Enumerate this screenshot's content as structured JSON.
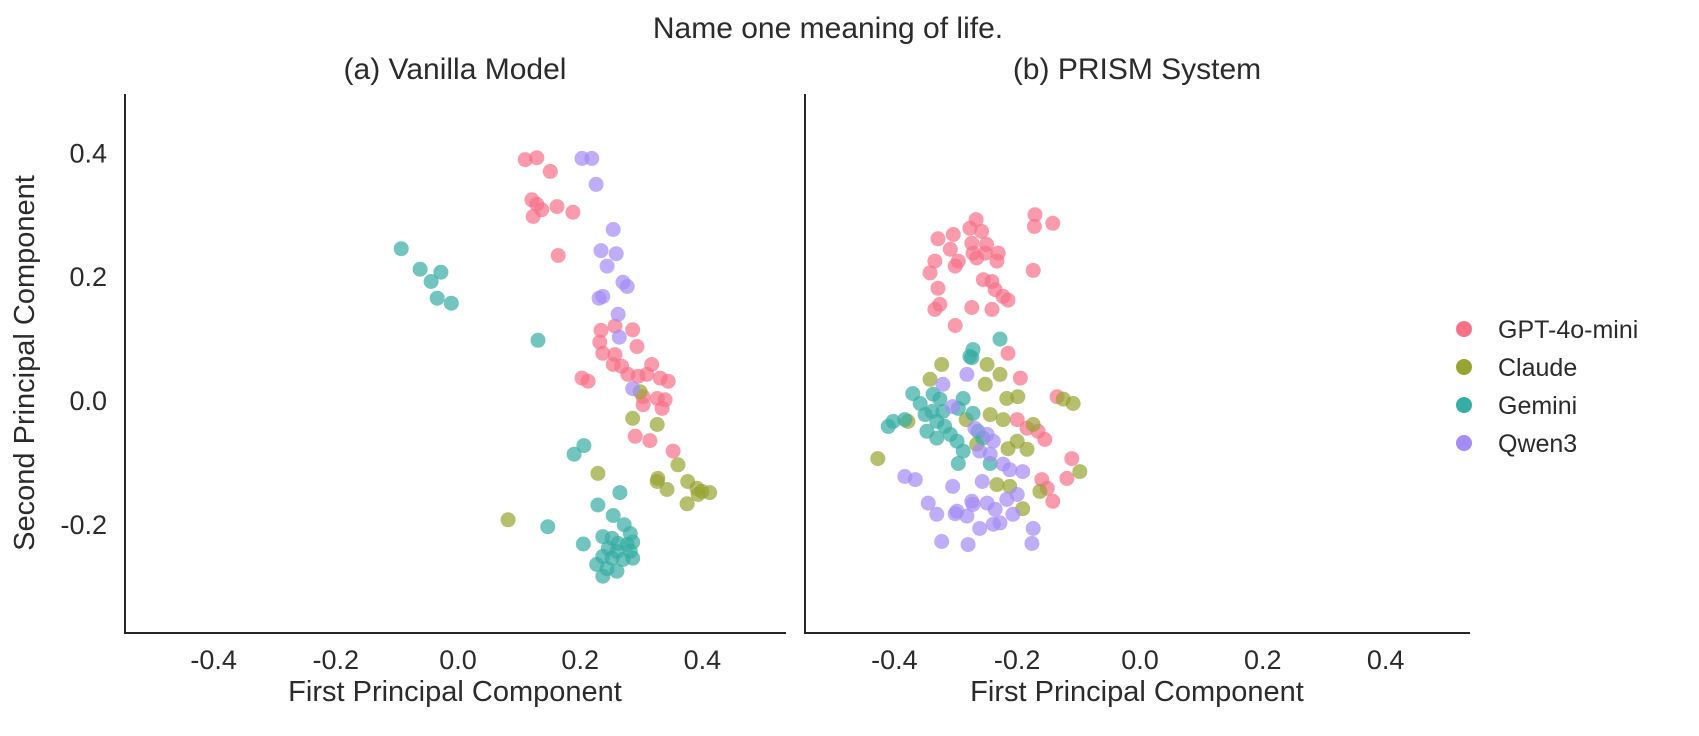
{
  "figure": {
    "title": "Name one meaning of life.",
    "text_color": "#2b2b2b",
    "background": "#ffffff"
  },
  "legend": {
    "position": "right of axes, vertically centered",
    "items": [
      {
        "label": "GPT-4o-mini",
        "color": "#f77189"
      },
      {
        "label": "Claude",
        "color": "#97a431"
      },
      {
        "label": "Gemini",
        "color": "#36ada4"
      },
      {
        "label": "Qwen3",
        "color": "#a48cf4"
      }
    ]
  },
  "chart_data": [
    {
      "type": "scatter",
      "title": "(a) Vanilla Model",
      "xlabel": "First Principal Component",
      "ylabel": "Second Principal Component",
      "xlim": [
        -0.545,
        0.54
      ],
      "ylim": [
        -0.375,
        0.495
      ],
      "xticks": [
        -0.4,
        -0.2,
        0.0,
        0.2,
        0.4
      ],
      "yticks": [
        0.4,
        0.2,
        0.0,
        -0.2
      ],
      "grid": false,
      "marker_alpha": 0.7,
      "series": [
        {
          "name": "GPT-4o-mini",
          "color": "#f77189",
          "points": [
            [
              0.11,
              0.39
            ],
            [
              0.129,
              0.393
            ],
            [
              0.151,
              0.371
            ],
            [
              0.129,
              0.318
            ],
            [
              0.123,
              0.298
            ],
            [
              0.121,
              0.325
            ],
            [
              0.137,
              0.309
            ],
            [
              0.162,
              0.314
            ],
            [
              0.188,
              0.305
            ],
            [
              0.164,
              0.235
            ],
            [
              0.234,
              0.114
            ],
            [
              0.232,
              0.095
            ],
            [
              0.237,
              0.077
            ],
            [
              0.257,
              0.121
            ],
            [
              0.286,
              0.115
            ],
            [
              0.293,
              0.088
            ],
            [
              0.257,
              0.075
            ],
            [
              0.254,
              0.059
            ],
            [
              0.268,
              0.056
            ],
            [
              0.317,
              0.059
            ],
            [
              0.278,
              0.043
            ],
            [
              0.295,
              0.04
            ],
            [
              0.309,
              0.043
            ],
            [
              0.331,
              0.037
            ],
            [
              0.344,
              0.032
            ],
            [
              0.203,
              0.037
            ],
            [
              0.213,
              0.032
            ],
            [
              0.303,
              0.007
            ],
            [
              0.326,
              0.004
            ],
            [
              0.339,
              0.002
            ],
            [
              0.303,
              -0.006
            ],
            [
              0.334,
              -0.012
            ],
            [
              0.29,
              -0.057
            ],
            [
              0.314,
              -0.064
            ],
            [
              0.352,
              -0.081
            ]
          ]
        },
        {
          "name": "Claude",
          "color": "#97a431",
          "points": [
            [
              0.298,
              0.015
            ],
            [
              0.286,
              -0.028
            ],
            [
              0.326,
              -0.038
            ],
            [
              0.229,
              -0.117
            ],
            [
              0.36,
              -0.103
            ],
            [
              0.327,
              -0.125
            ],
            [
              0.326,
              -0.13
            ],
            [
              0.342,
              -0.143
            ],
            [
              0.376,
              -0.13
            ],
            [
              0.391,
              -0.141
            ],
            [
              0.399,
              -0.146
            ],
            [
              0.412,
              -0.148
            ],
            [
              0.393,
              -0.151
            ],
            [
              0.375,
              -0.166
            ],
            [
              0.082,
              -0.192
            ]
          ]
        },
        {
          "name": "Gemini",
          "color": "#36ada4",
          "points": [
            [
              -0.093,
              0.246
            ],
            [
              -0.062,
              0.213
            ],
            [
              -0.028,
              0.208
            ],
            [
              -0.044,
              0.193
            ],
            [
              -0.034,
              0.166
            ],
            [
              -0.011,
              0.158
            ],
            [
              0.131,
              0.098
            ],
            [
              0.19,
              -0.086
            ],
            [
              0.206,
              -0.072
            ],
            [
              0.265,
              -0.148
            ],
            [
              0.229,
              -0.168
            ],
            [
              0.254,
              -0.185
            ],
            [
              0.272,
              -0.2
            ],
            [
              0.282,
              -0.214
            ],
            [
              0.286,
              -0.228
            ],
            [
              0.147,
              -0.203
            ],
            [
              0.205,
              -0.231
            ],
            [
              0.237,
              -0.219
            ],
            [
              0.252,
              -0.222
            ],
            [
              0.262,
              -0.23
            ],
            [
              0.277,
              -0.232
            ],
            [
              0.246,
              -0.238
            ],
            [
              0.26,
              -0.243
            ],
            [
              0.282,
              -0.243
            ],
            [
              0.237,
              -0.251
            ],
            [
              0.252,
              -0.254
            ],
            [
              0.27,
              -0.256
            ],
            [
              0.286,
              -0.254
            ],
            [
              0.227,
              -0.264
            ],
            [
              0.244,
              -0.271
            ],
            [
              0.26,
              -0.275
            ],
            [
              0.237,
              -0.283
            ]
          ]
        },
        {
          "name": "Qwen3",
          "color": "#a48cf4",
          "points": [
            [
              0.203,
              0.392
            ],
            [
              0.219,
              0.392
            ],
            [
              0.226,
              0.35
            ],
            [
              0.254,
              0.277
            ],
            [
              0.234,
              0.243
            ],
            [
              0.259,
              0.238
            ],
            [
              0.244,
              0.218
            ],
            [
              0.27,
              0.192
            ],
            [
              0.277,
              0.185
            ],
            [
              0.237,
              0.169
            ],
            [
              0.231,
              0.166
            ],
            [
              0.262,
              0.14
            ],
            [
              0.264,
              0.103
            ],
            [
              0.286,
              0.02
            ]
          ]
        }
      ]
    },
    {
      "type": "scatter",
      "title": "(b) PRISM System",
      "xlabel": "First Principal Component",
      "ylabel": "",
      "xlim": [
        -0.545,
        0.54
      ],
      "ylim": [
        -0.375,
        0.495
      ],
      "xticks": [
        -0.4,
        -0.2,
        0.0,
        0.2,
        0.4
      ],
      "yticks": [],
      "grid": false,
      "marker_alpha": 0.7,
      "series": [
        {
          "name": "GPT-4o-mini",
          "color": "#f77189",
          "points": [
            [
              -0.171,
              0.301
            ],
            [
              -0.142,
              0.287
            ],
            [
              -0.172,
              0.282
            ],
            [
              -0.267,
              0.293
            ],
            [
              -0.277,
              0.279
            ],
            [
              -0.258,
              0.274
            ],
            [
              -0.304,
              0.269
            ],
            [
              -0.329,
              0.262
            ],
            [
              -0.309,
              0.245
            ],
            [
              -0.274,
              0.255
            ],
            [
              -0.272,
              0.239
            ],
            [
              -0.25,
              0.253
            ],
            [
              -0.252,
              0.239
            ],
            [
              -0.231,
              0.239
            ],
            [
              -0.266,
              0.231
            ],
            [
              -0.296,
              0.226
            ],
            [
              -0.301,
              0.218
            ],
            [
              -0.334,
              0.226
            ],
            [
              -0.342,
              0.207
            ],
            [
              -0.233,
              0.226
            ],
            [
              -0.174,
              0.211
            ],
            [
              -0.255,
              0.196
            ],
            [
              -0.241,
              0.193
            ],
            [
              -0.236,
              0.18
            ],
            [
              -0.223,
              0.169
            ],
            [
              -0.215,
              0.163
            ],
            [
              -0.329,
              0.182
            ],
            [
              -0.326,
              0.156
            ],
            [
              -0.334,
              0.148
            ],
            [
              -0.274,
              0.151
            ],
            [
              -0.241,
              0.148
            ],
            [
              -0.301,
              0.122
            ],
            [
              -0.215,
              0.077
            ],
            [
              -0.195,
              0.037
            ],
            [
              -0.135,
              0.007
            ],
            [
              -0.2,
              -0.03
            ],
            [
              -0.184,
              -0.044
            ],
            [
              -0.166,
              -0.049
            ],
            [
              -0.155,
              -0.062
            ],
            [
              -0.111,
              -0.093
            ],
            [
              -0.119,
              -0.125
            ],
            [
              -0.16,
              -0.127
            ],
            [
              -0.151,
              -0.141
            ],
            [
              -0.142,
              -0.162
            ]
          ]
        },
        {
          "name": "Claude",
          "color": "#97a431",
          "points": [
            [
              -0.323,
              0.059
            ],
            [
              -0.342,
              0.035
            ],
            [
              -0.249,
              0.059
            ],
            [
              -0.228,
              0.043
            ],
            [
              -0.252,
              0.027
            ],
            [
              -0.217,
              0.004
            ],
            [
              -0.199,
              0.007
            ],
            [
              -0.378,
              -0.033
            ],
            [
              -0.283,
              -0.03
            ],
            [
              -0.244,
              -0.022
            ],
            [
              -0.223,
              -0.03
            ],
            [
              -0.266,
              -0.07
            ],
            [
              -0.2,
              -0.065
            ],
            [
              -0.215,
              -0.077
            ],
            [
              -0.184,
              -0.078
            ],
            [
              -0.174,
              -0.038
            ],
            [
              -0.125,
              0.003
            ],
            [
              -0.109,
              -0.004
            ],
            [
              -0.427,
              -0.093
            ],
            [
              -0.233,
              -0.135
            ],
            [
              -0.212,
              -0.138
            ],
            [
              -0.163,
              -0.146
            ],
            [
              -0.098,
              -0.114
            ],
            [
              -0.191,
              -0.174
            ]
          ]
        },
        {
          "name": "Gemini",
          "color": "#36ada4",
          "points": [
            [
              -0.277,
              0.072
            ],
            [
              -0.274,
              0.07
            ],
            [
              -0.228,
              0.1
            ],
            [
              -0.272,
              0.083
            ],
            [
              -0.37,
              0.012
            ],
            [
              -0.358,
              -0.004
            ],
            [
              -0.402,
              -0.033
            ],
            [
              -0.41,
              -0.041
            ],
            [
              -0.383,
              -0.03
            ],
            [
              -0.337,
              0.011
            ],
            [
              -0.326,
              0.003
            ],
            [
              -0.339,
              -0.017
            ],
            [
              -0.321,
              -0.017
            ],
            [
              -0.35,
              -0.022
            ],
            [
              -0.331,
              -0.033
            ],
            [
              -0.318,
              -0.041
            ],
            [
              -0.347,
              -0.049
            ],
            [
              -0.331,
              -0.06
            ],
            [
              -0.309,
              -0.054
            ],
            [
              -0.296,
              -0.012
            ],
            [
              -0.288,
              0.004
            ],
            [
              -0.272,
              -0.02
            ],
            [
              -0.298,
              -0.065
            ],
            [
              -0.288,
              -0.081
            ],
            [
              -0.296,
              -0.101
            ],
            [
              -0.264,
              -0.049
            ],
            [
              -0.256,
              -0.06
            ],
            [
              -0.244,
              -0.101
            ]
          ]
        },
        {
          "name": "Qwen3",
          "color": "#a48cf4",
          "points": [
            [
              -0.282,
              0.043
            ],
            [
              -0.321,
              0.027
            ],
            [
              -0.305,
              -0.009
            ],
            [
              -0.269,
              -0.044
            ],
            [
              -0.249,
              -0.054
            ],
            [
              -0.239,
              -0.065
            ],
            [
              -0.261,
              -0.081
            ],
            [
              -0.244,
              -0.086
            ],
            [
              -0.223,
              -0.102
            ],
            [
              -0.212,
              -0.111
            ],
            [
              -0.191,
              -0.114
            ],
            [
              -0.383,
              -0.122
            ],
            [
              -0.366,
              -0.127
            ],
            [
              -0.345,
              -0.165
            ],
            [
              -0.331,
              -0.183
            ],
            [
              -0.305,
              -0.138
            ],
            [
              -0.298,
              -0.178
            ],
            [
              -0.282,
              -0.186
            ],
            [
              -0.274,
              -0.162
            ],
            [
              -0.257,
              -0.13
            ],
            [
              -0.236,
              -0.175
            ],
            [
              -0.217,
              -0.159
            ],
            [
              -0.2,
              -0.151
            ],
            [
              -0.174,
              -0.206
            ],
            [
              -0.261,
              -0.206
            ],
            [
              -0.301,
              -0.182
            ],
            [
              -0.272,
              -0.167
            ],
            [
              -0.249,
              -0.165
            ],
            [
              -0.239,
              -0.199
            ],
            [
              -0.228,
              -0.197
            ],
            [
              -0.207,
              -0.183
            ],
            [
              -0.176,
              -0.23
            ],
            [
              -0.323,
              -0.227
            ],
            [
              -0.28,
              -0.232
            ]
          ]
        }
      ]
    }
  ]
}
